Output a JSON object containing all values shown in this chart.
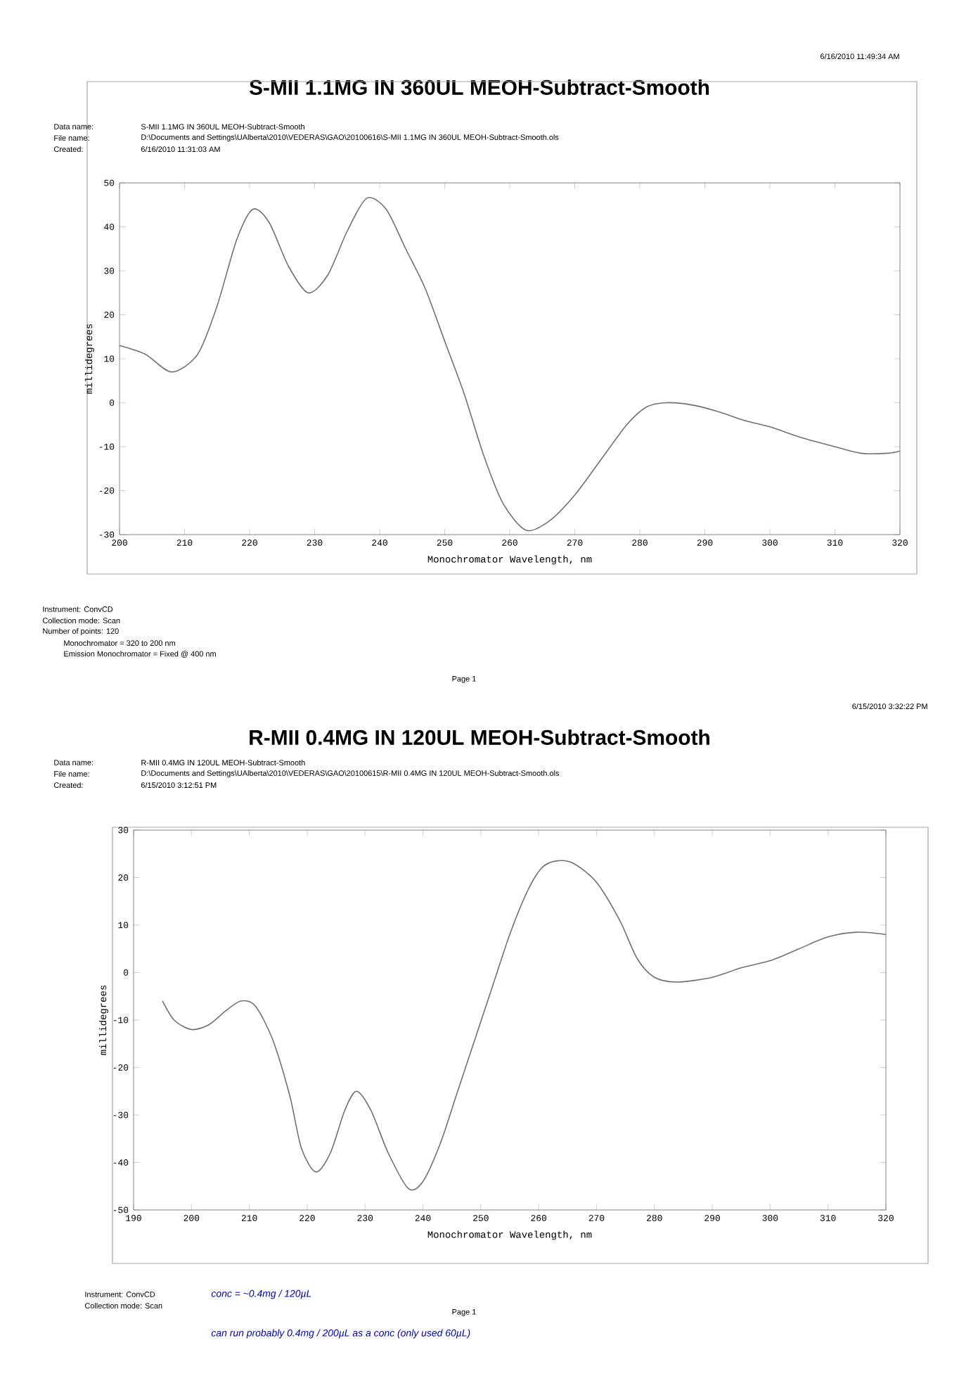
{
  "chart_data": [
    {
      "type": "line",
      "title": "S-MII 1.1MG IN 360UL MEOH-Subtract-Smooth",
      "xlabel": "Monochromator Wavelength, nm",
      "ylabel": "millidegrees",
      "annotations": [
        "6/16/2010 11:49:34 AM",
        "Data name:",
        "S-MII 1.1MG IN 360UL MEOH-Subtract-Smooth",
        "File name:",
        "D:\\Documents and Settings\\UAlberta\\2010\\VEDERAS\\GAO\\20100616\\S-MII 1.1MG IN 360UL MEOH-Subtract-Smooth.ols",
        "Created:",
        "6/16/2010 11:31:03 AM",
        "Instrument: ConvCD",
        "Collection mode: Scan",
        "Number of points: 120",
        "Monochromator = 320 to 200 nm",
        "Emission Monochromator = Fixed @ 400 nm",
        "Page 1"
      ],
      "x": [
        200,
        204,
        208,
        212,
        215,
        218,
        220.5,
        223,
        226,
        229,
        232,
        235,
        238,
        241,
        244,
        247,
        250,
        253,
        256,
        259,
        262.5,
        266,
        270,
        274,
        278,
        281,
        284,
        288,
        292,
        296,
        300,
        305,
        310,
        314,
        318,
        320
      ],
      "series": [
        {
          "color": "#707070",
          "values": [
            13,
            11,
            7,
            11,
            22,
            37,
            44,
            41,
            31,
            25,
            29,
            39,
            46.5,
            44,
            35,
            26,
            14,
            2,
            -12,
            -23,
            -29,
            -27,
            -21,
            -13,
            -5,
            -1,
            0,
            -0.5,
            -2,
            -4,
            -5.5,
            -8,
            -10,
            -11.5,
            -11.5,
            -11
          ]
        }
      ],
      "xlim": [
        200,
        320
      ],
      "xticks": [
        200,
        210,
        220,
        230,
        240,
        250,
        260,
        270,
        280,
        290,
        300,
        310,
        320
      ],
      "ylim": [
        -30,
        50
      ],
      "yticks": [
        -30,
        -20,
        -10,
        0,
        10,
        20,
        30,
        40,
        50
      ]
    },
    {
      "type": "line",
      "title": "R-MII 0.4MG IN 120UL MEOH-Subtract-Smooth",
      "xlabel": "Monochromator Wavelength, nm",
      "ylabel": "millidegrees",
      "annotations": [
        "6/15/2010 3:32:22 PM",
        "Data name:",
        "R-MII 0.4MG IN 120UL MEOH-Subtract-Smooth",
        "File name:",
        "D:\\Documents and Settings\\UAlberta\\2010\\VEDERAS\\GAO\\20100615\\R-MII 0.4MG IN 120UL MEOH-Subtract-Smooth.ols",
        "Created:",
        "6/15/2010 3:12:51 PM",
        "Instrument: ConvCD",
        "Collection mode: Scan",
        "Page 1",
        "conc = ~0.4mg / 120µL",
        "can run probably 0.4mg / 200µL as a conc (only used 60µL)"
      ],
      "x": [
        195,
        197,
        200,
        203,
        206,
        208.5,
        211,
        214,
        217,
        219,
        221.5,
        224,
        226.5,
        228.5,
        231,
        234,
        237.5,
        240,
        243,
        246,
        249,
        252,
        255,
        258,
        260.5,
        263,
        266,
        270,
        274,
        277,
        280,
        284,
        290,
        295,
        300,
        305,
        310,
        315,
        320
      ],
      "series": [
        {
          "color": "#707070",
          "values": [
            -6,
            -10,
            -12,
            -11,
            -8,
            -6,
            -7,
            -14,
            -26,
            -37,
            -42,
            -38,
            -29,
            -25,
            -29,
            -38,
            -45.5,
            -44,
            -36,
            -25,
            -14,
            -3,
            8,
            17,
            22,
            23.5,
            23,
            19,
            11,
            3,
            -1,
            -2,
            -1,
            1,
            2.5,
            5,
            7.5,
            8.5,
            8
          ]
        }
      ],
      "xlim": [
        190,
        320
      ],
      "xticks": [
        190,
        200,
        210,
        220,
        230,
        240,
        250,
        260,
        270,
        280,
        290,
        300,
        310,
        320
      ],
      "ylim": [
        -50,
        30
      ],
      "yticks": [
        -50,
        -40,
        -30,
        -20,
        -10,
        0,
        10,
        20,
        30
      ]
    }
  ]
}
